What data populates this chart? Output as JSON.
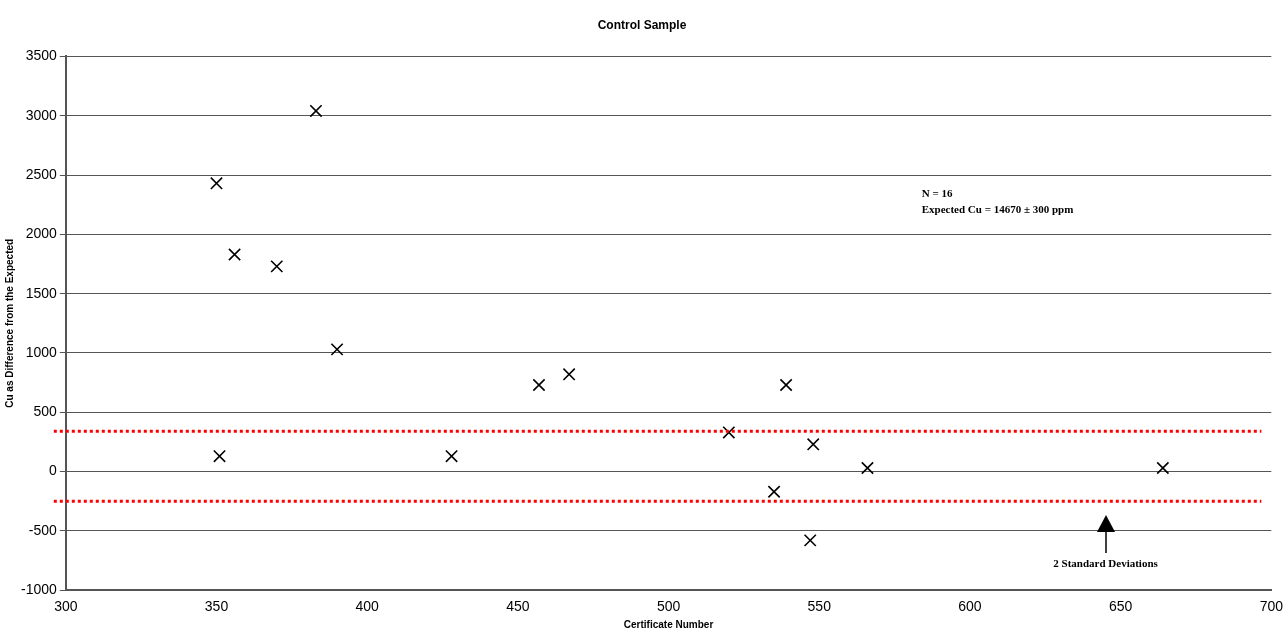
{
  "chart_data": {
    "type": "scatter",
    "title": "Control Sample",
    "xlabel": "Certificate Number",
    "ylabel": "Cu as Difference from the Expected",
    "x": [
      350,
      351,
      356,
      370,
      383,
      390,
      428,
      457,
      467,
      520,
      535,
      539,
      547,
      548,
      566,
      664
    ],
    "values": [
      2430,
      130,
      1830,
      1730,
      3040,
      1030,
      130,
      730,
      820,
      330,
      -170,
      730,
      -580,
      230,
      30,
      30
    ],
    "color": "#000000",
    "marker": "cross",
    "xlim": [
      300,
      700
    ],
    "xticks": [
      300,
      350,
      400,
      450,
      500,
      550,
      600,
      650,
      700
    ],
    "ylim": [
      -1000,
      3500
    ],
    "yticks": [
      -1000,
      -500,
      0,
      500,
      1000,
      1500,
      2000,
      2500,
      3000,
      3500
    ],
    "grid": "y",
    "legend": false,
    "ref_lines": [
      {
        "axis": "y",
        "value": 340,
        "color": "#ff0000",
        "line_style": "dotted"
      },
      {
        "axis": "y",
        "value": -250,
        "color": "#ff0000",
        "line_style": "dotted"
      }
    ],
    "annotations": [
      "N = 16",
      "Expected Cu = 14670 ± 300 ppm",
      "2 Standard Deviations"
    ]
  }
}
